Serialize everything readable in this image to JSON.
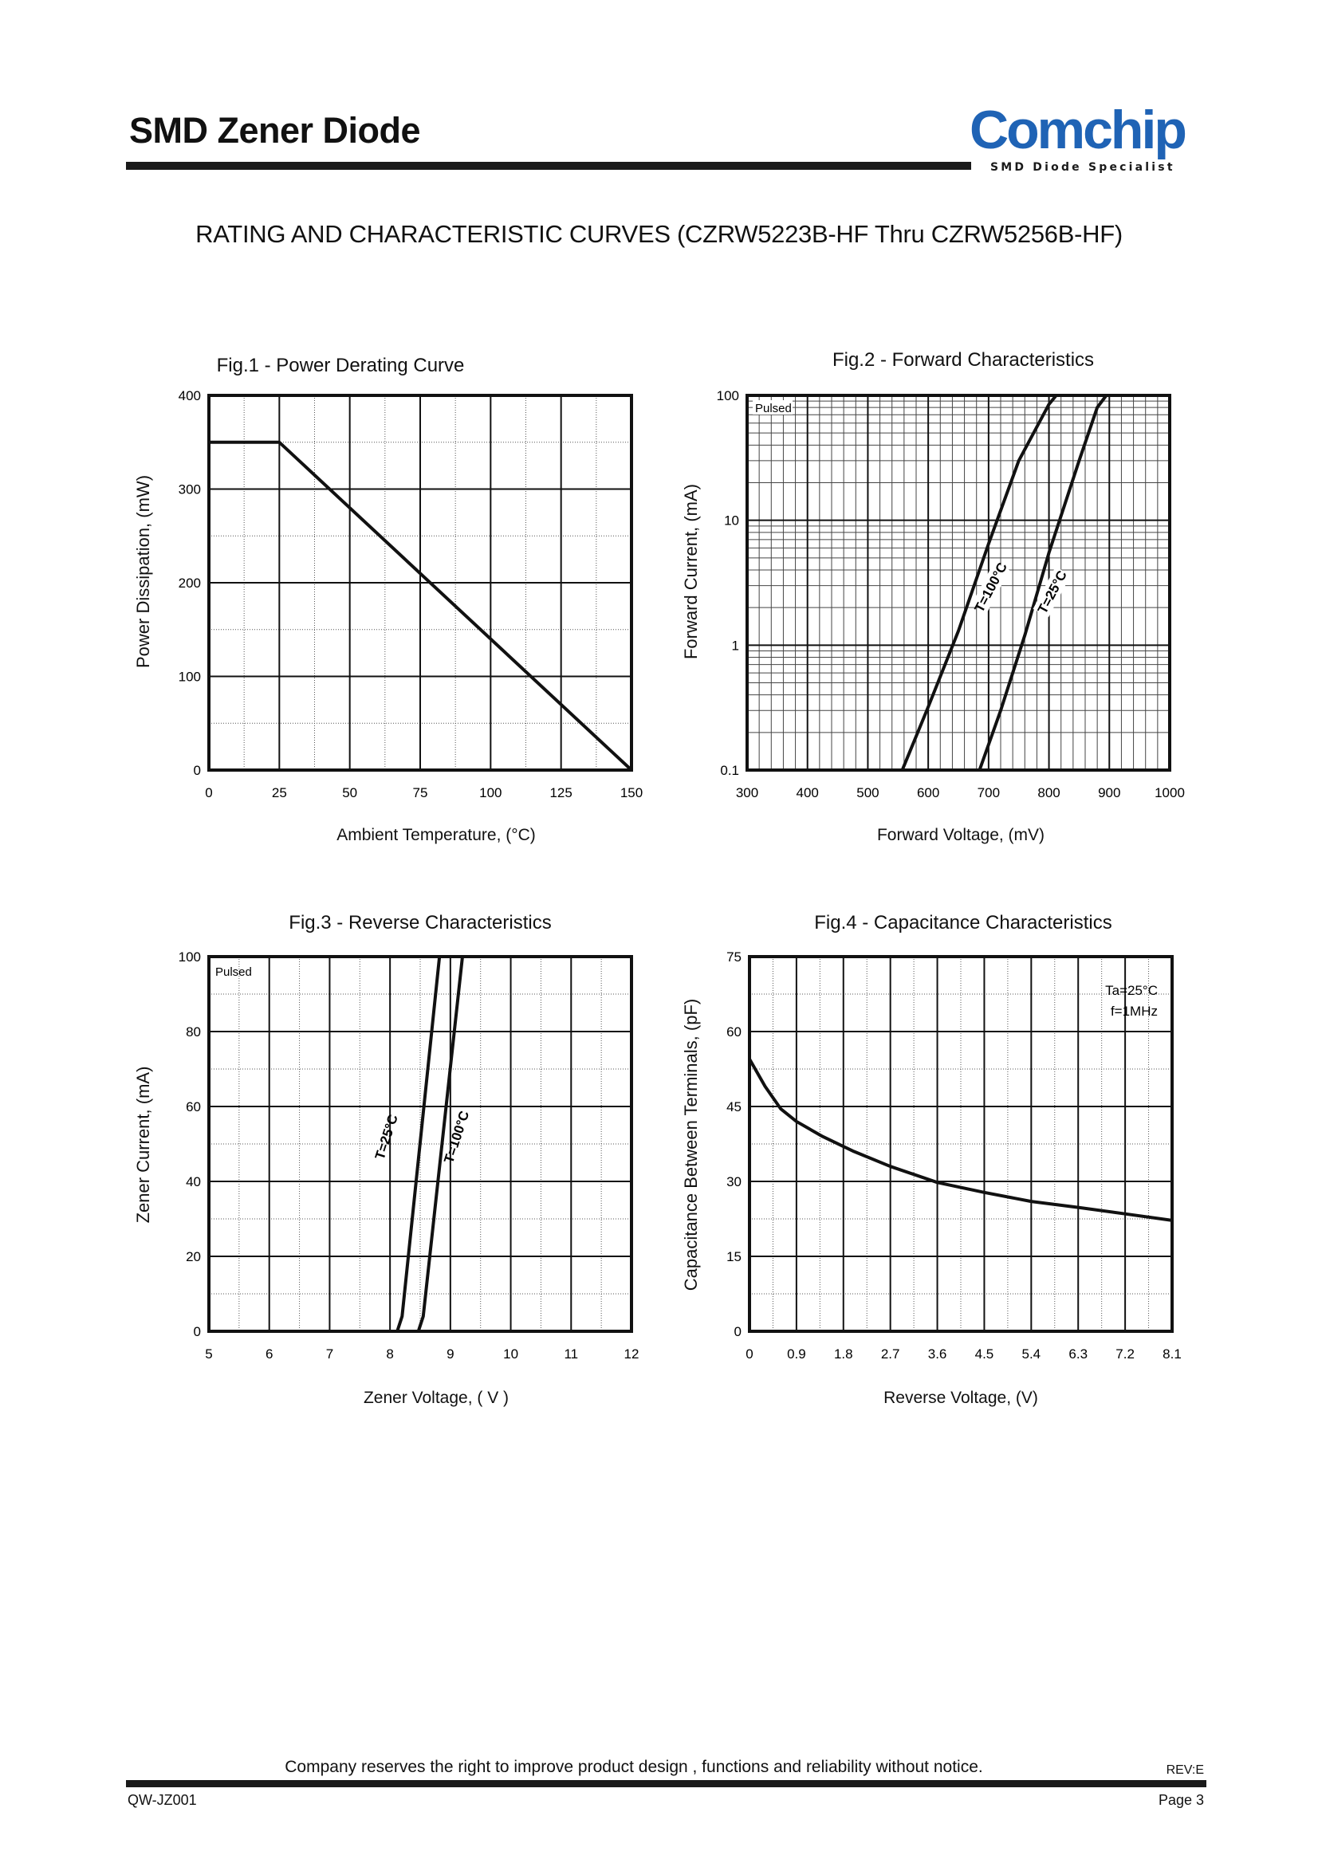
{
  "header": {
    "doc_title": "SMD Zener Diode",
    "logo_text": "Comchip",
    "logo_tagline": "SMD Diode Specialist",
    "logo_color": "#1f63b5"
  },
  "section_title": "RATING AND CHARACTERISTIC CURVES (CZRW5223B-HF Thru CZRW5256B-HF)",
  "figures": [
    {
      "title": "Fig.1 - Power Derating Curve",
      "xlabel": "Ambient Temperature, (°C)",
      "ylabel": "Power Dissipation, (mW)"
    },
    {
      "title": "Fig.2 - Forward Characteristics",
      "xlabel": "Forward Voltage, (mV)",
      "ylabel": "Forward Current, (mA)"
    },
    {
      "title": "Fig.3 - Reverse Characteristics",
      "xlabel": "Zener Voltage, ( V )",
      "ylabel": "Zener Current, (mA)"
    },
    {
      "title": "Fig.4 - Capacitance Characteristics",
      "xlabel": "Reverse Voltage, (V)",
      "ylabel": "Capacitance Between Terminals, (pF)"
    }
  ],
  "chart_data": [
    {
      "type": "line",
      "title": "Fig.1 - Power Derating Curve",
      "xlabel": "Ambient Temperature, (°C)",
      "ylabel": "Power Dissipation, (mW)",
      "xlim": [
        0,
        150
      ],
      "ylim": [
        0,
        400
      ],
      "xticks": [
        "0",
        "25",
        "50",
        "75",
        "100",
        "125",
        "150"
      ],
      "yticks": [
        "0",
        "100",
        "200",
        "300",
        "400"
      ],
      "grid": true,
      "series": [
        {
          "x": [
            0,
            25,
            150
          ],
          "y": [
            350,
            350,
            0
          ]
        }
      ]
    },
    {
      "type": "line",
      "title": "Fig.2 - Forward Characteristics",
      "xlabel": "Forward Voltage, (mV)",
      "ylabel": "Forward Current, (mA)",
      "xlim": [
        300,
        1000
      ],
      "ylim": [
        0.1,
        100
      ],
      "yscale": "log",
      "xticks": [
        "300",
        "400",
        "500",
        "600",
        "700",
        "800",
        "900",
        "1000"
      ],
      "yticks": [
        "0.1",
        "1",
        "10",
        "100"
      ],
      "annotation": "Pulsed",
      "grid": true,
      "series": [
        {
          "name": "T=100°C",
          "x": [
            557,
            600,
            650,
            700,
            750,
            800,
            812
          ],
          "y": [
            0.1,
            0.32,
            1.3,
            6.5,
            30,
            85,
            100
          ]
        },
        {
          "name": "T=25°C",
          "x": [
            685,
            720,
            760,
            800,
            850,
            880,
            895
          ],
          "y": [
            0.1,
            0.3,
            1.2,
            5.5,
            30,
            80,
            100
          ]
        }
      ]
    },
    {
      "type": "line",
      "title": "Fig.3 - Reverse Characteristics",
      "xlabel": "Zener Voltage, ( V )",
      "ylabel": "Zener Current, (mA)",
      "xlim": [
        5,
        12
      ],
      "ylim": [
        0,
        100
      ],
      "xticks": [
        "5",
        "6",
        "7",
        "8",
        "9",
        "10",
        "11",
        "12"
      ],
      "yticks": [
        "0",
        "20",
        "40",
        "60",
        "80",
        "100"
      ],
      "annotation": "Pulsed",
      "grid": true,
      "series": [
        {
          "name": "T=25°C",
          "x": [
            8.12,
            8.2,
            8.82
          ],
          "y": [
            0,
            4,
            100
          ]
        },
        {
          "name": "T=100°C",
          "x": [
            8.47,
            8.55,
            9.2
          ],
          "y": [
            0,
            4,
            100
          ]
        }
      ]
    },
    {
      "type": "line",
      "title": "Fig.4 - Capacitance Characteristics",
      "xlabel": "Reverse Voltage, (V)",
      "ylabel": "Capacitance Between Terminals, (pF)",
      "xlim": [
        0,
        8.1
      ],
      "ylim": [
        0,
        75
      ],
      "xticks": [
        "0",
        "0.9",
        "1.8",
        "2.7",
        "3.6",
        "4.5",
        "5.4",
        "6.3",
        "7.2",
        "8.1"
      ],
      "yticks": [
        "0",
        "15",
        "30",
        "45",
        "60",
        "75"
      ],
      "annotations": [
        "Ta=25°C",
        "f=1MHz"
      ],
      "grid": true,
      "series": [
        {
          "x": [
            0,
            0.3,
            0.6,
            0.9,
            1.4,
            2.0,
            2.7,
            3.6,
            4.5,
            5.4,
            6.3,
            7.2,
            8.1
          ],
          "y": [
            54.5,
            49,
            44.5,
            42,
            39,
            36,
            33,
            29.8,
            27.8,
            26,
            24.8,
            23.5,
            22.2
          ]
        }
      ]
    }
  ],
  "footer": {
    "note": "Company reserves the right to improve product design , functions and reliability without notice.",
    "rev": "REV:E",
    "doc_code": "QW-JZ001",
    "page": "Page 3"
  }
}
